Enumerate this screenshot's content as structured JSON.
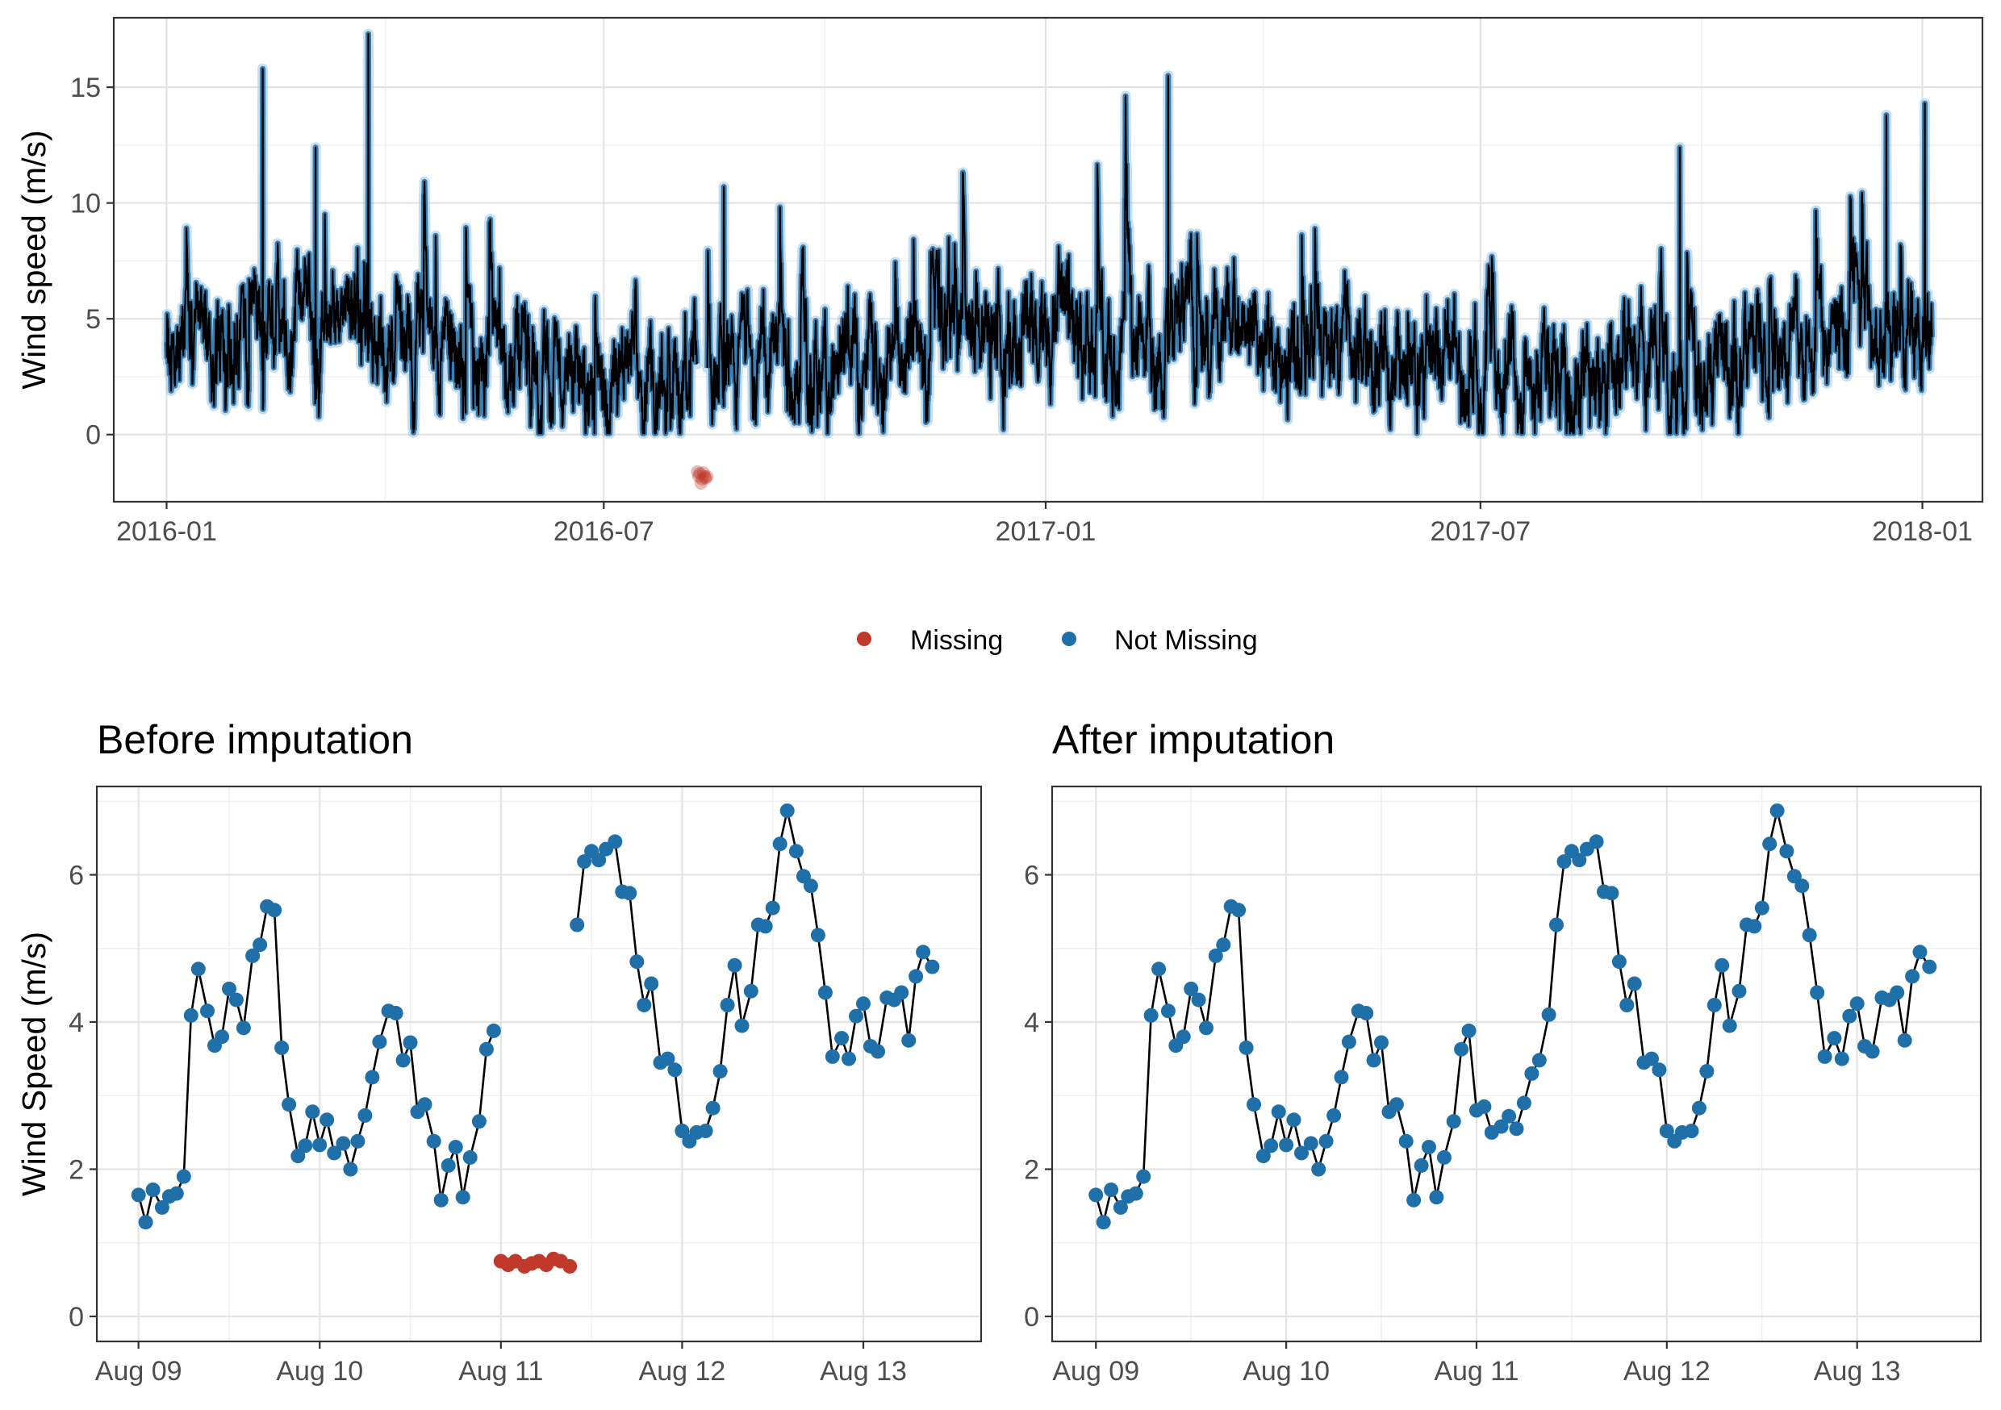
{
  "colors": {
    "missing": "#C0392B",
    "not_missing": "#1F6FA8",
    "halo": "#9CC5E0",
    "line": "#000000"
  },
  "legend": {
    "position": "bottom-center",
    "entries": [
      "Missing",
      "Not Missing"
    ]
  },
  "chart_data": [
    {
      "id": "full_series",
      "type": "line",
      "title": "",
      "xlabel": "",
      "ylabel": "Wind speed (m/s)",
      "xlim": [
        "2015-12-10",
        "2018-01-26"
      ],
      "ylim": [
        -2.9,
        18.0
      ],
      "x_ticks": [
        "2016-01-01",
        "2016-07-01",
        "2017-01-01",
        "2017-07-01",
        "2018-01-01"
      ],
      "x_tick_labels": [
        "2016-01",
        "2016-07",
        "2017-01",
        "2017-07",
        "2018-01"
      ],
      "y_ticks": [
        0,
        5,
        10,
        15
      ],
      "grid": true,
      "series_range": [
        "2016-01-01",
        "2018-01-05"
      ],
      "notable_peaks": [
        {
          "x": "2016-02-10",
          "y": 15.8
        },
        {
          "x": "2016-03-25",
          "y": 17.3
        },
        {
          "x": "2016-03-03",
          "y": 12.4
        },
        {
          "x": "2016-08-20",
          "y": 10.7
        },
        {
          "x": "2017-02-21",
          "y": 15.5
        },
        {
          "x": "2017-09-22",
          "y": 12.4
        },
        {
          "x": "2017-12-17",
          "y": 13.8
        },
        {
          "x": "2018-01-02",
          "y": 14.3
        }
      ],
      "missing_block": {
        "x": [
          "2016-08-09",
          "2016-08-13"
        ],
        "y": -1.8,
        "label": "Missing"
      }
    },
    {
      "id": "before_imputation",
      "type": "line",
      "title": "Before imputation",
      "xlabel": "",
      "ylabel": "Wind Speed (m/s)",
      "x_unit": "days since Aug 09 00:00",
      "xlim": [
        -0.23,
        4.65
      ],
      "ylim": [
        -0.34,
        7.2
      ],
      "x_ticks": [
        0,
        1,
        2,
        3,
        4
      ],
      "x_tick_labels": [
        "Aug 09",
        "Aug 10",
        "Aug 11",
        "Aug 12",
        "Aug 13"
      ],
      "y_ticks": [
        0,
        2,
        4,
        6
      ],
      "grid": true,
      "series": [
        {
          "name": "Not Missing",
          "x": [
            0.0,
            0.04,
            0.08,
            0.13,
            0.17,
            0.21,
            0.25,
            0.29,
            0.33,
            0.38,
            0.42,
            0.46,
            0.5,
            0.54,
            0.58,
            0.63,
            0.67,
            0.71,
            0.75,
            0.79,
            0.83,
            0.88,
            0.92,
            0.96,
            1.0,
            1.04,
            1.08,
            1.13,
            1.17,
            1.21,
            1.25,
            1.29,
            1.33,
            1.38,
            1.42,
            1.46,
            1.5,
            1.54,
            1.58,
            1.63,
            1.67,
            1.71,
            1.75,
            1.79,
            1.83,
            1.88,
            1.92,
            1.96
          ],
          "y": [
            1.65,
            1.28,
            1.72,
            1.48,
            1.63,
            1.67,
            1.9,
            4.09,
            4.72,
            4.15,
            3.68,
            3.8,
            4.45,
            4.3,
            3.92,
            4.9,
            5.05,
            5.57,
            5.52,
            3.65,
            2.88,
            2.18,
            2.32,
            2.78,
            2.33,
            2.67,
            2.22,
            2.35,
            2.0,
            2.38,
            2.73,
            3.25,
            3.73,
            4.15,
            4.12,
            3.48,
            3.72,
            2.78,
            2.88,
            2.38,
            1.58,
            2.05,
            2.3,
            1.62,
            2.16,
            2.65,
            3.63,
            3.88
          ]
        },
        {
          "name": "Missing",
          "x": [
            2.0,
            2.04,
            2.08,
            2.13,
            2.17,
            2.21,
            2.25,
            2.29,
            2.33,
            2.38
          ],
          "y": [
            0.75,
            0.7,
            0.75,
            0.68,
            0.72,
            0.75,
            0.7,
            0.78,
            0.75,
            0.68
          ]
        },
        {
          "name": "Not Missing",
          "x": [
            2.42,
            2.46,
            2.5,
            2.54,
            2.58,
            2.63,
            2.67,
            2.71,
            2.75,
            2.79,
            2.83,
            2.88,
            2.92,
            2.96,
            3.0,
            3.04,
            3.08,
            3.13,
            3.17,
            3.21,
            3.25,
            3.29,
            3.33,
            3.38,
            3.42,
            3.46,
            3.5,
            3.54,
            3.58,
            3.63,
            3.67,
            3.71,
            3.75,
            3.79,
            3.83,
            3.88,
            3.92,
            3.96,
            4.0,
            4.04,
            4.08,
            4.13,
            4.17,
            4.21,
            4.25,
            4.29,
            4.33,
            4.38
          ],
          "y": [
            5.32,
            6.18,
            6.32,
            6.2,
            6.35,
            6.45,
            5.77,
            5.75,
            4.82,
            4.23,
            4.52,
            3.45,
            3.5,
            3.35,
            2.52,
            2.38,
            2.5,
            2.52,
            2.83,
            3.33,
            4.23,
            4.77,
            3.95,
            4.42,
            5.32,
            5.3,
            5.55,
            6.42,
            6.87,
            6.32,
            5.98,
            5.85,
            5.18,
            4.4,
            3.53,
            3.78,
            3.5,
            4.08,
            4.25,
            3.67,
            3.6,
            4.33,
            4.3,
            4.4,
            3.75,
            4.62,
            4.95,
            4.75
          ]
        }
      ]
    },
    {
      "id": "after_imputation",
      "type": "line",
      "title": "After imputation",
      "xlabel": "",
      "ylabel": "",
      "x_unit": "days since Aug 09 00:00",
      "xlim": [
        -0.23,
        4.65
      ],
      "ylim": [
        -0.34,
        7.2
      ],
      "x_ticks": [
        0,
        1,
        2,
        3,
        4
      ],
      "x_tick_labels": [
        "Aug 09",
        "Aug 10",
        "Aug 11",
        "Aug 12",
        "Aug 13"
      ],
      "y_ticks": [
        0,
        2,
        4,
        6
      ],
      "grid": true,
      "series": [
        {
          "name": "Not Missing",
          "x": [
            0.0,
            0.04,
            0.08,
            0.13,
            0.17,
            0.21,
            0.25,
            0.29,
            0.33,
            0.38,
            0.42,
            0.46,
            0.5,
            0.54,
            0.58,
            0.63,
            0.67,
            0.71,
            0.75,
            0.79,
            0.83,
            0.88,
            0.92,
            0.96,
            1.0,
            1.04,
            1.08,
            1.13,
            1.17,
            1.21,
            1.25,
            1.29,
            1.33,
            1.38,
            1.42,
            1.46,
            1.5,
            1.54,
            1.58,
            1.63,
            1.67,
            1.71,
            1.75,
            1.79,
            1.83,
            1.88,
            1.92,
            1.96,
            2.0,
            2.04,
            2.08,
            2.13,
            2.17,
            2.21,
            2.25,
            2.29,
            2.33,
            2.38,
            2.42,
            2.46,
            2.5,
            2.54,
            2.58,
            2.63,
            2.67,
            2.71,
            2.75,
            2.79,
            2.83,
            2.88,
            2.92,
            2.96,
            3.0,
            3.04,
            3.08,
            3.13,
            3.17,
            3.21,
            3.25,
            3.29,
            3.33,
            3.38,
            3.42,
            3.46,
            3.5,
            3.54,
            3.58,
            3.63,
            3.67,
            3.71,
            3.75,
            3.79,
            3.83,
            3.88,
            3.92,
            3.96,
            4.0,
            4.04,
            4.08,
            4.13,
            4.17,
            4.21,
            4.25,
            4.29,
            4.33,
            4.38
          ],
          "y": [
            1.65,
            1.28,
            1.72,
            1.48,
            1.63,
            1.67,
            1.9,
            4.09,
            4.72,
            4.15,
            3.68,
            3.8,
            4.45,
            4.3,
            3.92,
            4.9,
            5.05,
            5.57,
            5.52,
            3.65,
            2.88,
            2.18,
            2.32,
            2.78,
            2.33,
            2.67,
            2.22,
            2.35,
            2.0,
            2.38,
            2.73,
            3.25,
            3.73,
            4.15,
            4.12,
            3.48,
            3.72,
            2.78,
            2.88,
            2.38,
            1.58,
            2.05,
            2.3,
            1.62,
            2.16,
            2.65,
            3.63,
            3.88,
            2.8,
            2.85,
            2.5,
            2.58,
            2.72,
            2.55,
            2.9,
            3.3,
            3.48,
            4.1,
            5.32,
            6.18,
            6.32,
            6.2,
            6.35,
            6.45,
            5.77,
            5.75,
            4.82,
            4.23,
            4.52,
            3.45,
            3.5,
            3.35,
            2.52,
            2.38,
            2.5,
            2.52,
            2.83,
            3.33,
            4.23,
            4.77,
            3.95,
            4.42,
            5.32,
            5.3,
            5.55,
            6.42,
            6.87,
            6.32,
            5.98,
            5.85,
            5.18,
            4.4,
            3.53,
            3.78,
            3.5,
            4.08,
            4.25,
            3.67,
            3.6,
            4.33,
            4.3,
            4.4,
            3.75,
            4.62,
            4.95,
            4.75
          ]
        }
      ]
    }
  ]
}
